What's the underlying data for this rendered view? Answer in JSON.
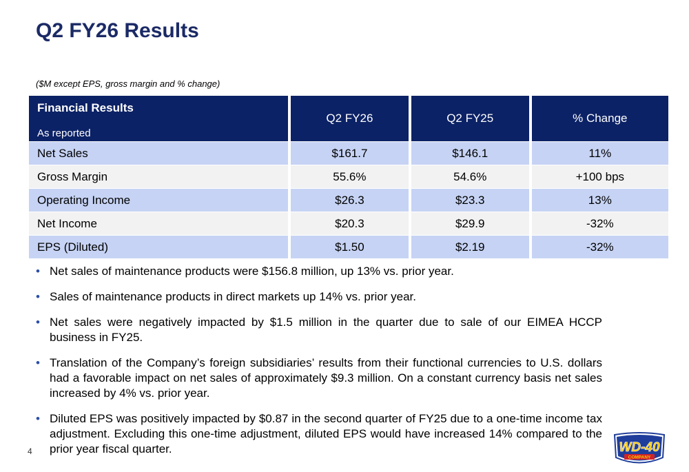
{
  "slide": {
    "title": "Q2 FY26 Results",
    "note": "($M except EPS, gross margin and % change)",
    "page_number": "4"
  },
  "table": {
    "header": {
      "title": "Financial Results",
      "subtitle": "As reported",
      "columns": [
        "Q2 FY26",
        "Q2 FY25",
        "% Change"
      ]
    },
    "rows": [
      {
        "label": "Net Sales",
        "cells": [
          "$161.7",
          "$146.1",
          "11%"
        ]
      },
      {
        "label": "Gross Margin",
        "cells": [
          "55.6%",
          "54.6%",
          "+100 bps"
        ]
      },
      {
        "label": "Operating Income",
        "cells": [
          "$26.3",
          "$23.3",
          "13%"
        ]
      },
      {
        "label": "Net Income",
        "cells": [
          "$20.3",
          "$29.9",
          "-32%"
        ]
      },
      {
        "label": "EPS (Diluted)",
        "cells": [
          "$1.50",
          "$2.19",
          "-32%"
        ]
      }
    ]
  },
  "bullets": [
    "Net sales of maintenance products were $156.8 million, up 13% vs. prior year.",
    "Sales of maintenance products in direct markets up 14% vs. prior year.",
    "Net sales were negatively impacted by $1.5 million in the quarter due to sale of our EIMEA HCCP business in FY25.",
    "Translation of the Company’s foreign subsidiaries’ results from their functional currencies to U.S. dollars had a favorable impact on net sales of approximately $9.3 million. On a constant currency basis net sales increased by 4% vs. prior year.",
    "Diluted EPS was positively impacted by $0.87 in the second quarter of FY25 due to a one-time income tax adjustment. Excluding this one-time adjustment, diluted EPS would have increased 14% compared to the prior year fiscal quarter."
  ],
  "logo": {
    "main_text": "WD-40",
    "sub_text": "COMPANY",
    "colors": {
      "blue": "#1f3d9a",
      "yellow": "#f5c400",
      "red": "#d1232a"
    }
  }
}
